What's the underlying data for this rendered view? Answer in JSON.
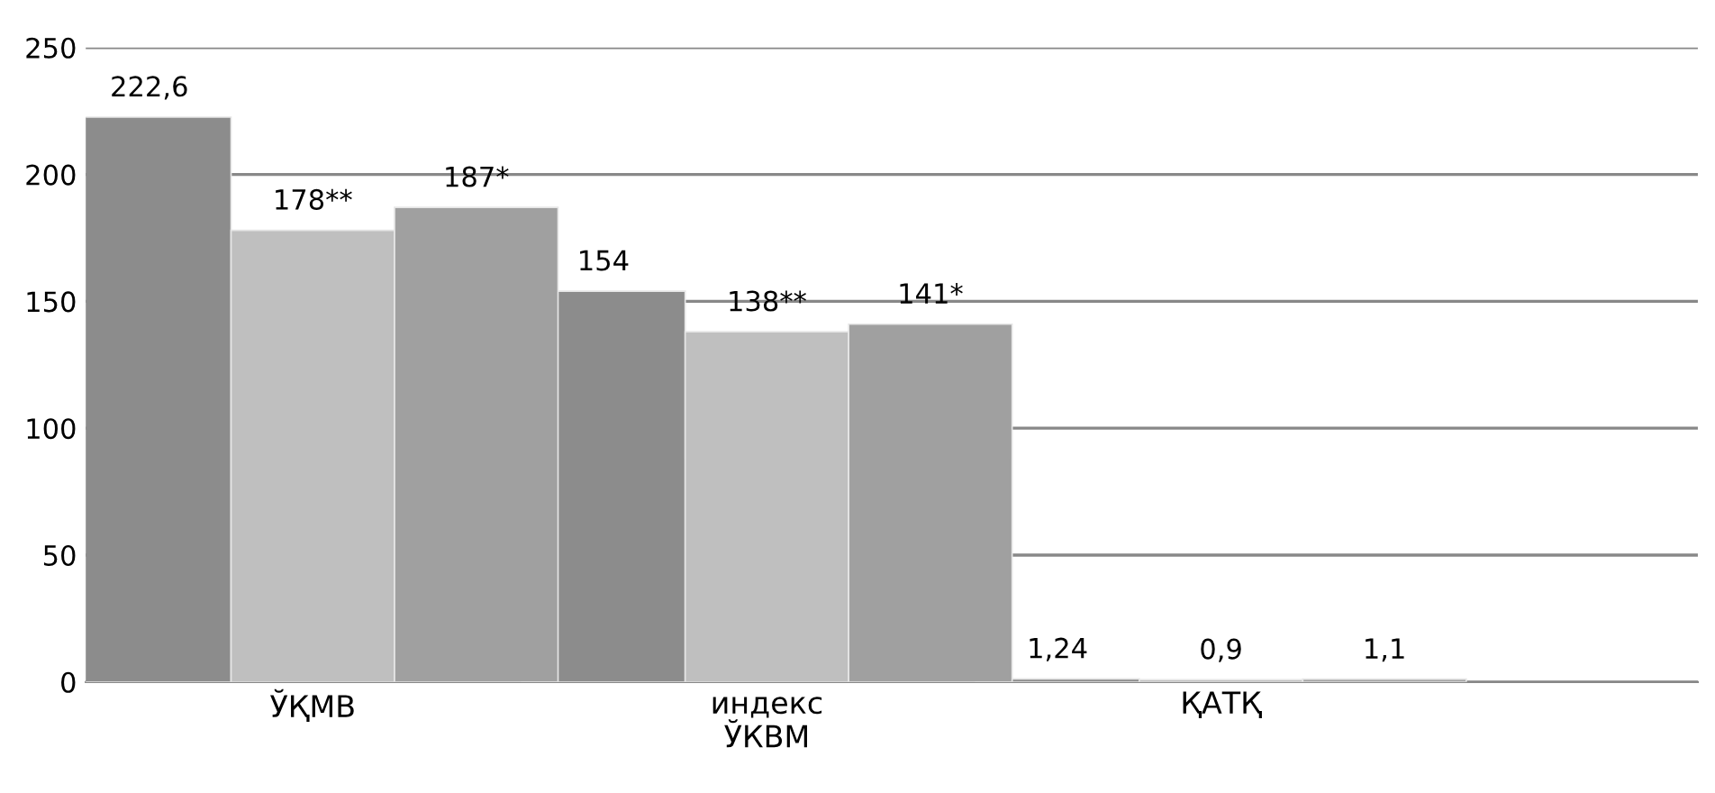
{
  "chart_data": {
    "type": "bar",
    "categories": [
      "ЎҚМВ",
      "индекс\nЎКВМ",
      "ҚАТҚ"
    ],
    "series": [
      {
        "color": "#8c8c8c",
        "values": [
          222.6,
          154,
          1.24
        ],
        "value_labels": [
          "222,6",
          "154",
          "1,24"
        ]
      },
      {
        "color": "#bfbfbf",
        "values": [
          178,
          138,
          0.9
        ],
        "value_labels": [
          "178**",
          "138**",
          "0,9"
        ]
      },
      {
        "color": "#a0a0a0",
        "values": [
          187,
          141,
          1.1
        ],
        "value_labels": [
          "187*",
          "141*",
          "1,1"
        ]
      }
    ],
    "ylim": [
      0,
      250
    ],
    "yticks": [
      0,
      50,
      100,
      150,
      200,
      250
    ],
    "grid": "y",
    "legend": false
  }
}
